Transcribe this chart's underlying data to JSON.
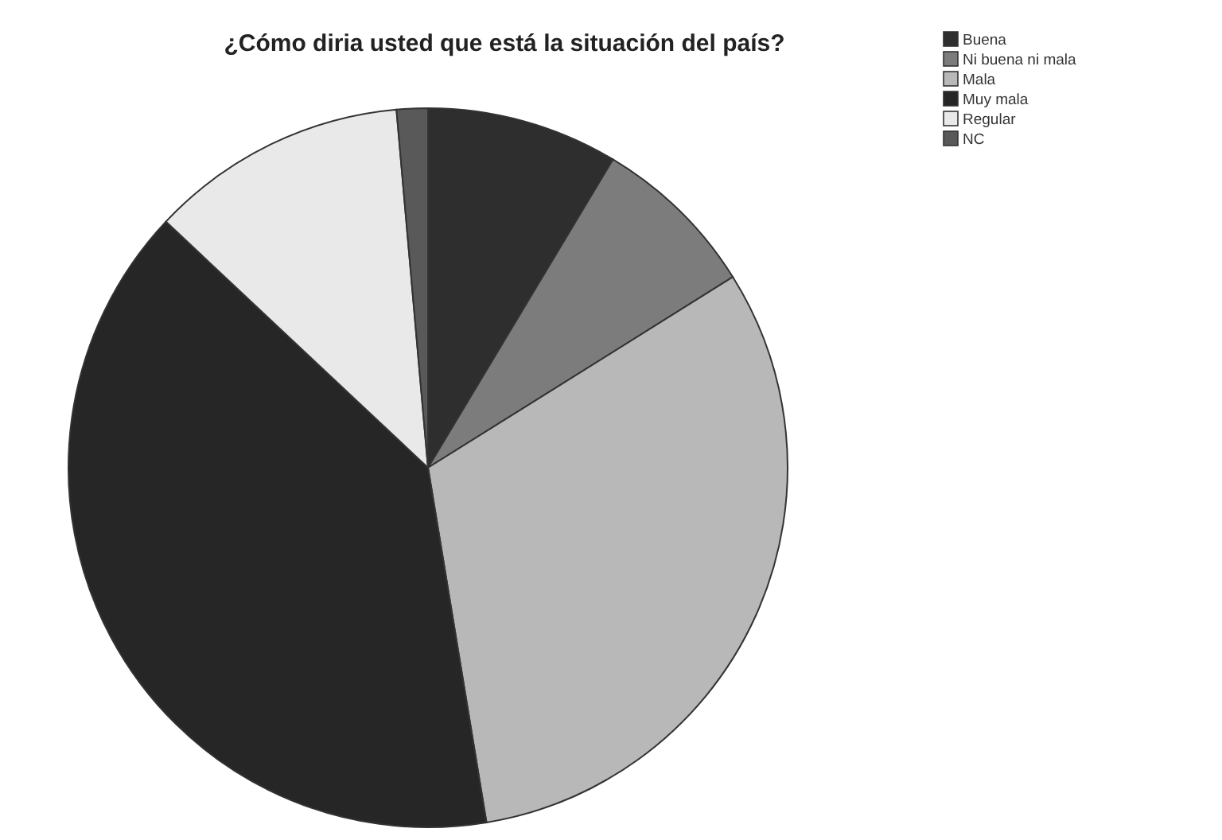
{
  "chart_data": {
    "type": "pie",
    "title": "¿Cómo diria usted que está la situación del país?",
    "categories": [
      "Buena",
      "Ni buena ni mala",
      "Mala",
      "Muy mala",
      "Regular",
      "NC"
    ],
    "values": [
      8.6,
      7.5,
      31.3,
      39.6,
      11.6,
      1.4
    ],
    "colors": [
      "#2e2e2e",
      "#7c7c7c",
      "#b8b8b8",
      "#262626",
      "#e9e9e9",
      "#595959"
    ],
    "legend": "top right"
  }
}
